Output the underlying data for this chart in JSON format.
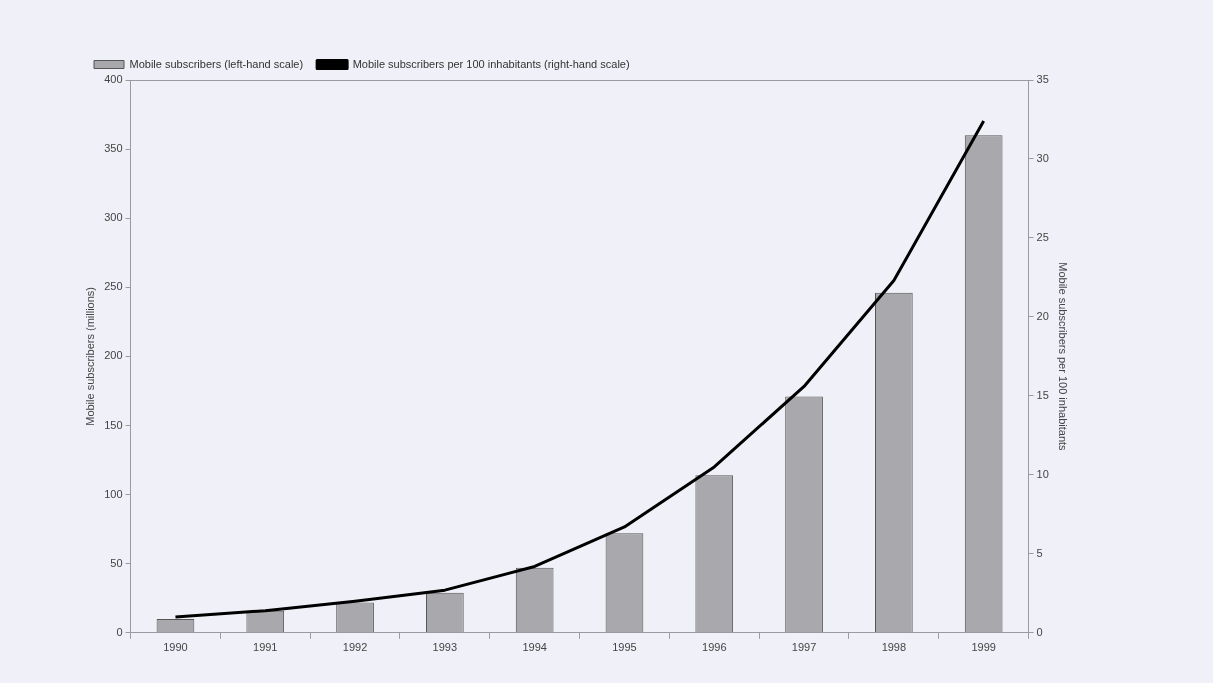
{
  "chart_data": {
    "type": "bar",
    "xlabel": null,
    "ylabel": "Mobile subscribers (millions)",
    "y2label": "Mobile subscribers per 100 inhabitants",
    "categories": [
      "1990",
      "1991",
      "1992",
      "1993",
      "1994",
      "1995",
      "1996",
      "1997",
      "1998",
      "1999"
    ],
    "series": [
      {
        "name": "Mobile subscribers (left-hand scale)",
        "color": "#a9a9ad",
        "values": [
          10,
          16,
          22,
          29,
          47,
          72,
          114,
          171,
          246,
          360
        ]
      },
      {
        "name": "Mobile subscribers per 100 inhabitants (right-hand scale)",
        "type": "line",
        "axis": "y2",
        "color": "#000000",
        "values": [
          1.0,
          1.4,
          2.0,
          2.7,
          4.2,
          6.7,
          10.5,
          15.6,
          22.3,
          32.4
        ]
      }
    ],
    "ylim": [
      0,
      400
    ],
    "yticks": [
      0,
      50,
      100,
      150,
      200,
      250,
      300,
      350,
      400
    ],
    "y2lim": [
      0,
      35
    ],
    "y2ticks": [
      0,
      5,
      10,
      15,
      20,
      25,
      30,
      35
    ],
    "grid": false,
    "legend": "top",
    "marker": "none",
    "line_style": "solid"
  }
}
